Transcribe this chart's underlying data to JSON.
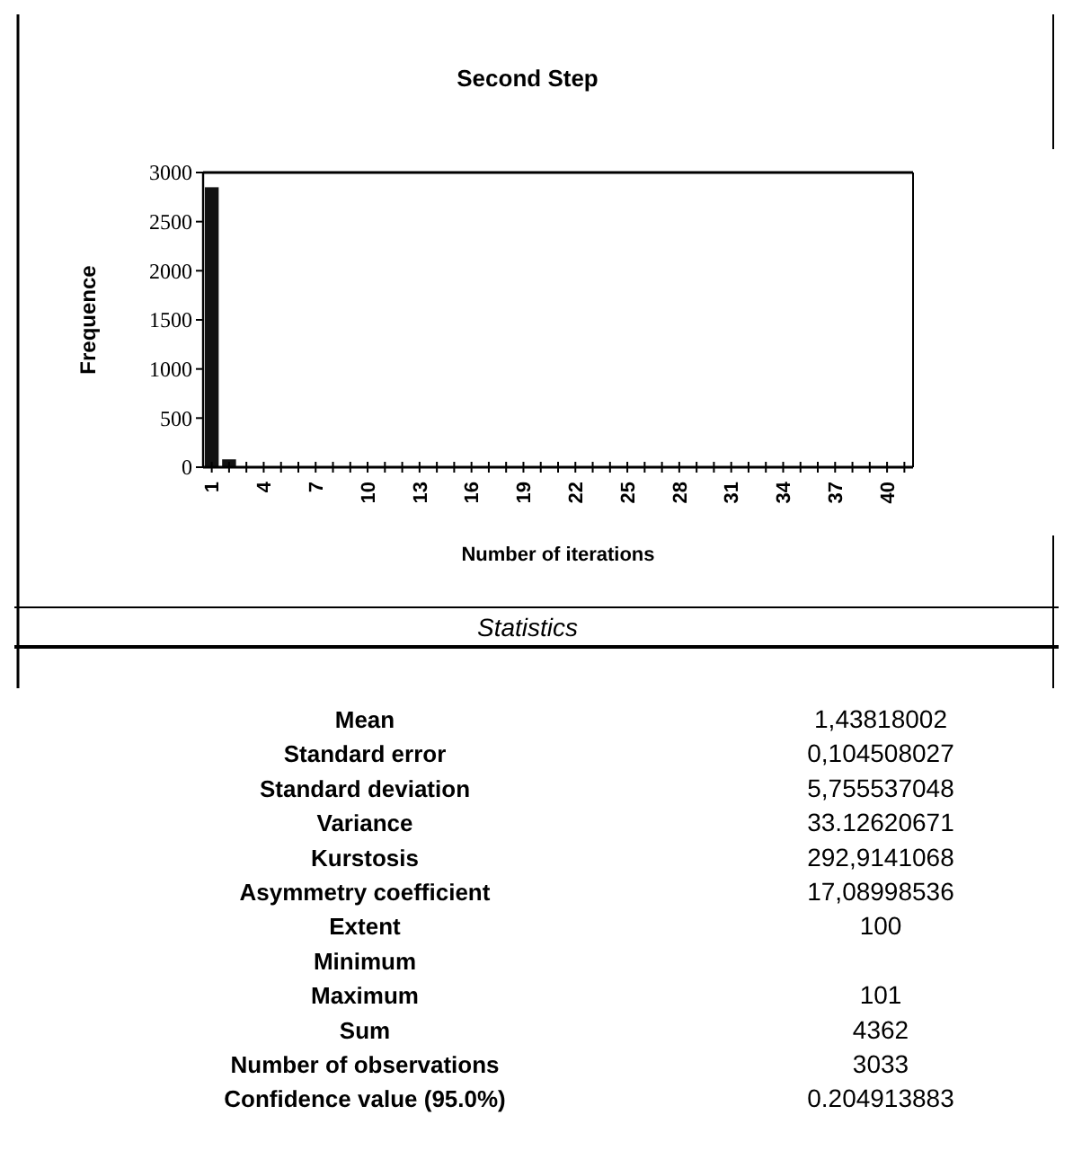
{
  "chart_data": {
    "type": "bar",
    "title": "Second Step",
    "xlabel": "Number of iterations",
    "ylabel": "Frequence",
    "categories": [
      "1",
      null,
      null,
      "4",
      null,
      null,
      "7",
      null,
      null,
      "10",
      null,
      null,
      "13",
      null,
      null,
      "16",
      null,
      null,
      "19",
      null,
      null,
      "22",
      null,
      null,
      "25",
      null,
      null,
      "28",
      null,
      null,
      "31",
      null,
      null,
      "34",
      null,
      null,
      "37",
      null,
      null,
      "40",
      null
    ],
    "values": [
      2850,
      80,
      0,
      0,
      0,
      0,
      0,
      0,
      0,
      0,
      0,
      0,
      0,
      0,
      0,
      0,
      0,
      0,
      0,
      0,
      0,
      0,
      0,
      0,
      0,
      0,
      0,
      0,
      0,
      0,
      0,
      0,
      0,
      0,
      0,
      0,
      0,
      0,
      0,
      0,
      0
    ],
    "color": "#111111",
    "ylim": [
      0,
      3000
    ],
    "yticks": [
      0,
      500,
      1000,
      1500,
      2000,
      2500,
      3000
    ],
    "grid": false,
    "annotations": [
      "Statistics",
      "Mean",
      "1,43818002",
      "Standard error",
      "0,104508027",
      "Standard deviation",
      "5,755537048",
      "Variance",
      "33.12620671",
      "Kurstosis",
      "292,9141068",
      "Asymmetry coefficient",
      "17,08998536",
      "Extent",
      "100",
      "Minimum",
      null,
      "Maximum",
      "101",
      "Sum",
      "4362",
      "Number of observations",
      "3033",
      "Confidence value (95.0%)",
      "0.204913883"
    ]
  }
}
